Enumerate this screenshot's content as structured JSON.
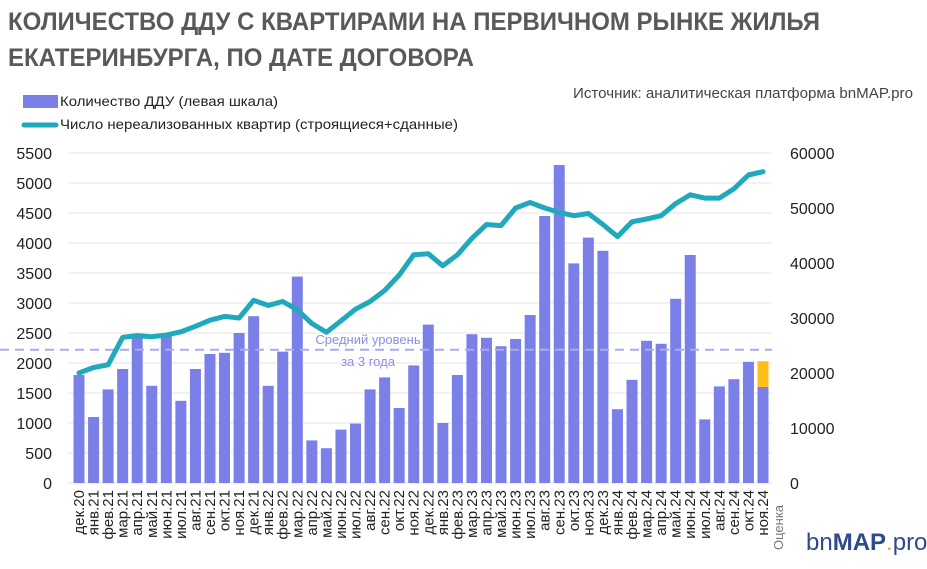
{
  "chart_data": {
    "type": "bar",
    "title_line1": "КОЛИЧЕСТВО ДДУ С КВАРТИРАМИ НА ПЕРВИЧНОМ РЫНКЕ ЖИЛЬЯ",
    "title_line2": "ЕКАТЕРИНБУРГА, ПО ДАТЕ ДОГОВОРА",
    "source": "Источник: аналитическая платформа bnMAP.pro",
    "logo": "bnMAP.pro",
    "legend_position": "top-left",
    "colors": {
      "bars": "#7B80E8",
      "estimate": "#FFBE1A",
      "line": "#1FA9BA",
      "avg": "#A9ACEB",
      "title": "#595959",
      "text": "#222222"
    },
    "categories": [
      "дек.20",
      "янв.21",
      "фев.21",
      "мар.21",
      "апр.21",
      "май.21",
      "июн.21",
      "июл.21",
      "авг.21",
      "сен.21",
      "окт.21",
      "ноя.21",
      "дек.21",
      "янв.22",
      "фев.22",
      "мар.22",
      "апр.22",
      "май.22",
      "июн.22",
      "июл.22",
      "авг.22",
      "сен.22",
      "окт.22",
      "ноя.22",
      "дек.22",
      "янв.23",
      "фев.23",
      "мар.23",
      "апр.23",
      "май.23",
      "июн.23",
      "июл.23",
      "авг.23",
      "сен.23",
      "окт.23",
      "ноя.23",
      "дек.23",
      "янв.24",
      "фев.24",
      "мар.24",
      "апр.24",
      "май.24",
      "июн.24",
      "июл.24",
      "авг.24",
      "сен.24",
      "окт.24",
      "ноя.24"
    ],
    "series": [
      {
        "name": "Количество ДДУ (левая шкала)",
        "type": "bar",
        "axis": "left",
        "values": [
          1800,
          1100,
          1560,
          1900,
          2420,
          1620,
          2440,
          1370,
          1900,
          2150,
          2170,
          2500,
          2780,
          1620,
          2190,
          3440,
          710,
          580,
          890,
          990,
          1560,
          1760,
          1250,
          1960,
          2640,
          1000,
          1800,
          2480,
          2420,
          2280,
          2400,
          2800,
          4450,
          5300,
          3660,
          4090,
          3870,
          1230,
          1720,
          2370,
          2320,
          3070,
          3800,
          1060,
          1610,
          1730,
          2020,
          1600
        ]
      },
      {
        "name": "Оценка",
        "type": "bar-stack",
        "axis": "left",
        "values": [
          0,
          0,
          0,
          0,
          0,
          0,
          0,
          0,
          0,
          0,
          0,
          0,
          0,
          0,
          0,
          0,
          0,
          0,
          0,
          0,
          0,
          0,
          0,
          0,
          0,
          0,
          0,
          0,
          0,
          0,
          0,
          0,
          0,
          0,
          0,
          0,
          0,
          0,
          0,
          0,
          0,
          0,
          0,
          0,
          0,
          0,
          0,
          430
        ]
      },
      {
        "name": "Число нереализованных квартир (строящиеся+сданные)",
        "type": "line",
        "axis": "right",
        "values": [
          20000,
          21000,
          21500,
          26500,
          26800,
          26600,
          26900,
          27500,
          28500,
          29600,
          30300,
          30000,
          33200,
          32300,
          33000,
          31500,
          29000,
          27400,
          29500,
          31600,
          33000,
          35000,
          37800,
          41500,
          41700,
          39500,
          41500,
          44500,
          47000,
          46800,
          50000,
          51000,
          50000,
          49200,
          48600,
          49000,
          47000,
          44800,
          47500,
          48000,
          48600,
          50800,
          52400,
          51800,
          51800,
          53500,
          56000,
          56600
        ]
      }
    ],
    "average": {
      "value": 2220,
      "label_line1": "Средний уровень",
      "label_line2": "за 3 года"
    },
    "estimate_label": "Оценка",
    "y_left": {
      "ylim": [
        0,
        5500
      ],
      "ticks": [
        "0",
        "500",
        "1000",
        "1500",
        "2000",
        "2500",
        "3000",
        "3500",
        "4000",
        "4500",
        "5000",
        "5500"
      ]
    },
    "y_right": {
      "ylim": [
        0,
        60000
      ],
      "ticks": [
        "0",
        "10000",
        "20000",
        "30000",
        "40000",
        "50000",
        "60000"
      ]
    },
    "grid": true
  }
}
